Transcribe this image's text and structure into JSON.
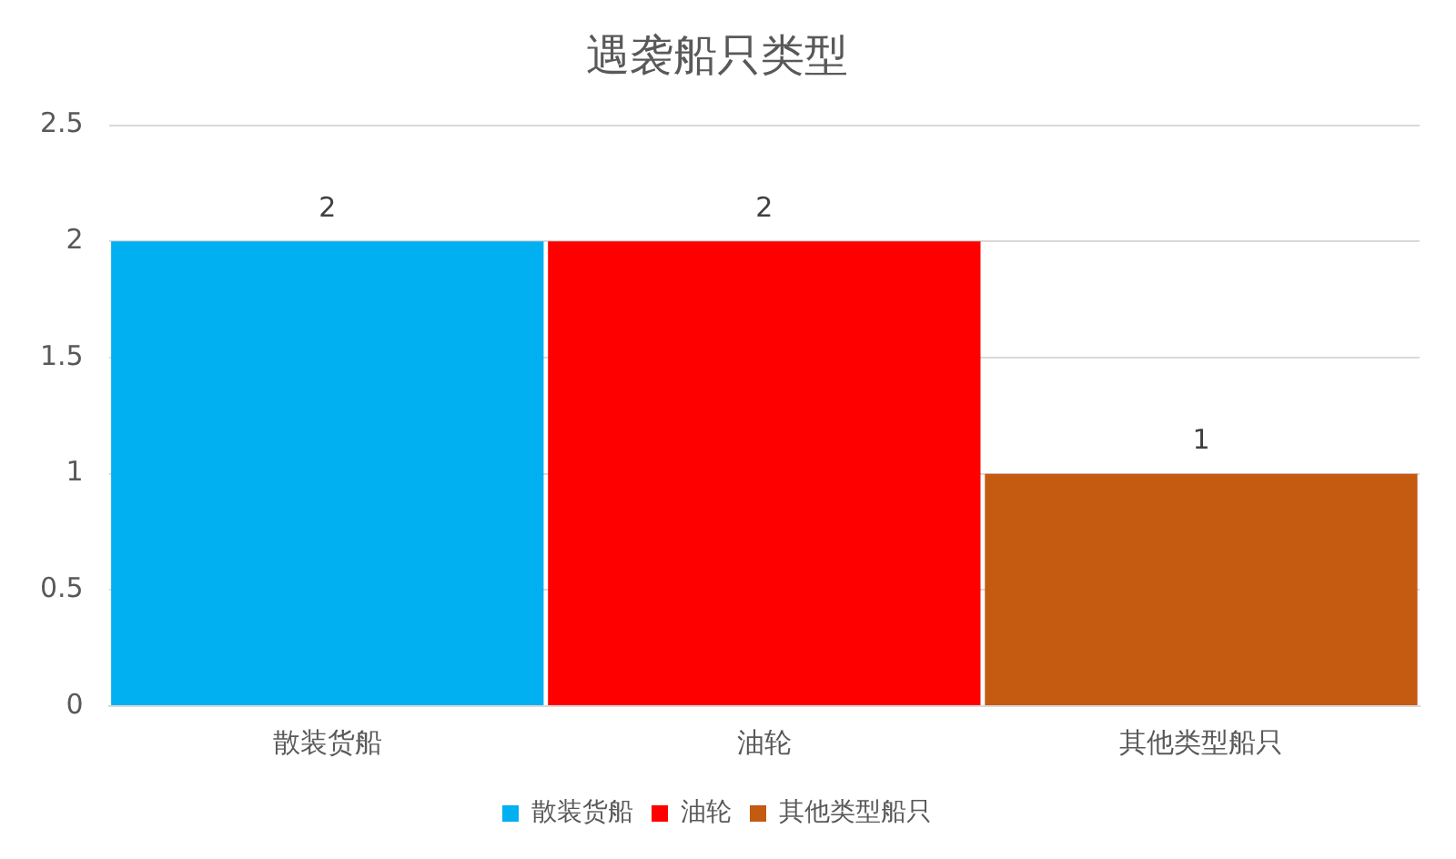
{
  "chart_data": {
    "type": "bar",
    "title": "遇袭船只类型",
    "categories": [
      "散装货船",
      "油轮",
      "其他类型船只"
    ],
    "series": [
      {
        "name": "散装货船",
        "color": "#00b0f0",
        "values": [
          2,
          null,
          null
        ]
      },
      {
        "name": "油轮",
        "color": "#ff0000",
        "values": [
          null,
          2,
          null
        ]
      },
      {
        "name": "其他类型船只",
        "color": "#c55a11",
        "values": [
          null,
          null,
          1
        ]
      }
    ],
    "ylim": [
      0,
      2.5
    ],
    "yticks": [
      0,
      0.5,
      1,
      1.5,
      2,
      2.5
    ],
    "grid": "y",
    "legend": "bottom",
    "data_labels": true
  }
}
